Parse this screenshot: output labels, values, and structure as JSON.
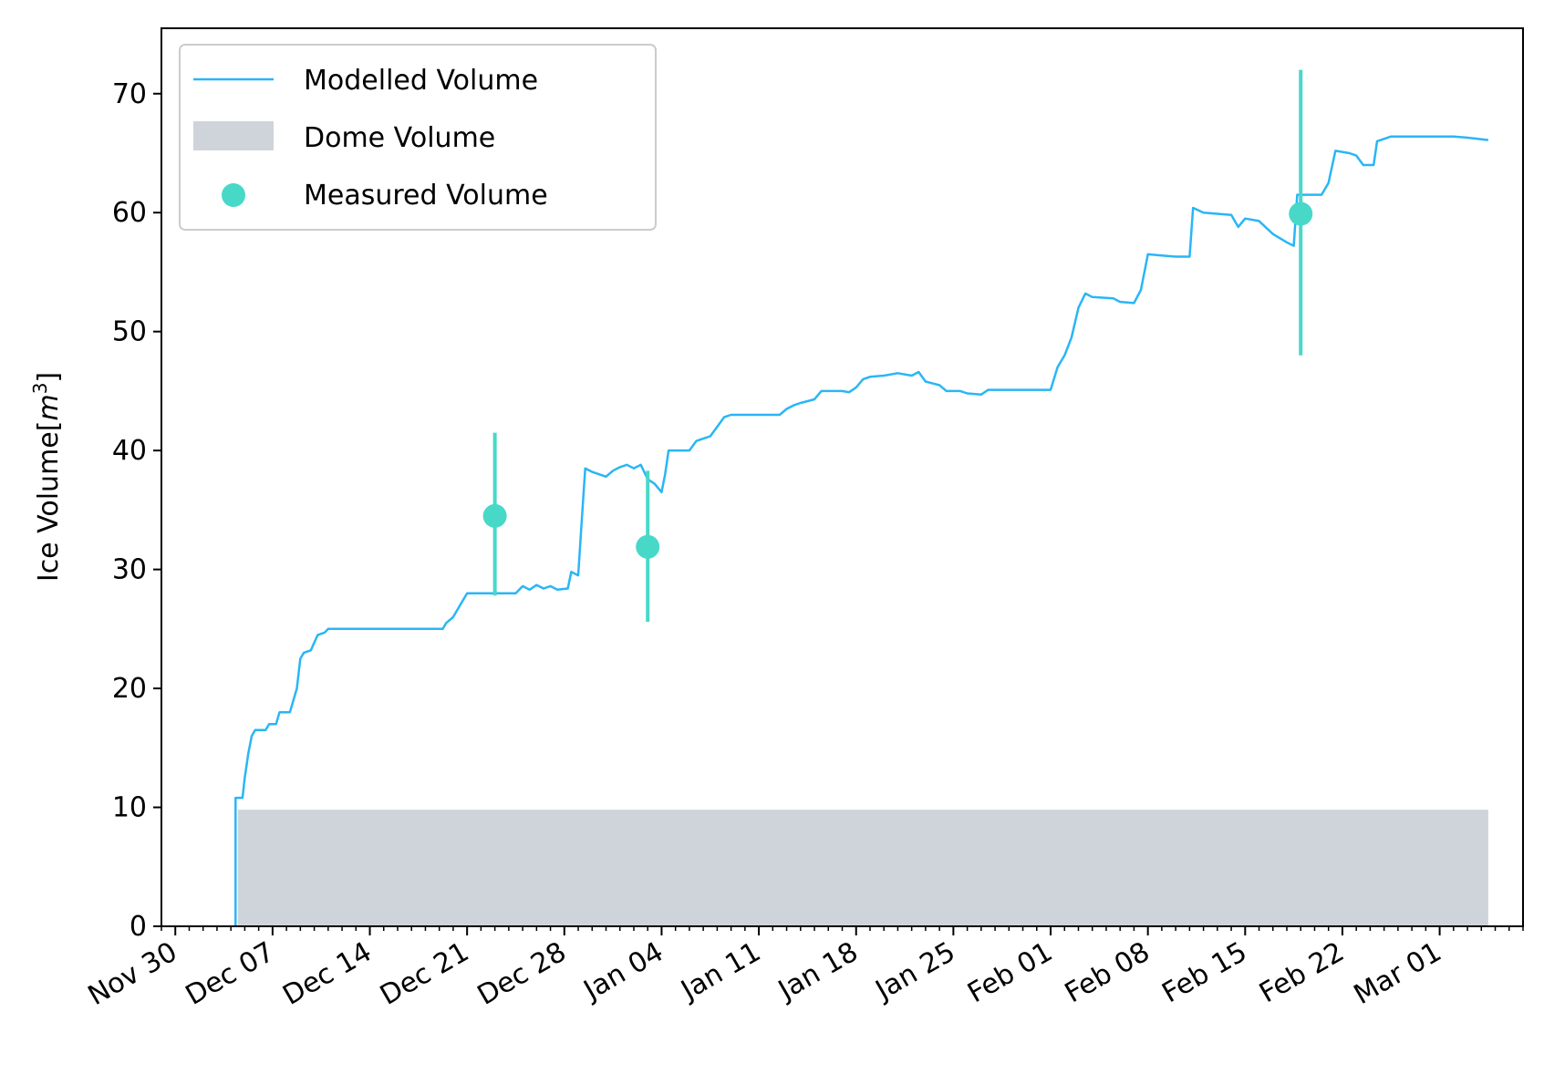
{
  "chart_data": {
    "type": "line",
    "ylabel": "Ice Volume[",
    "ylabel_math": "m",
    "ylabel_sup": "3",
    "ylabel_close": "]",
    "ylim": [
      0,
      75.5
    ],
    "yticks": [
      0,
      10,
      20,
      30,
      40,
      50,
      60,
      70
    ],
    "xlim": [
      "2020-11-29",
      "2021-03-07"
    ],
    "xticks": [
      {
        "date": "2020-11-30",
        "label": "Nov 30"
      },
      {
        "date": "2020-12-07",
        "label": "Dec 07"
      },
      {
        "date": "2020-12-14",
        "label": "Dec 14"
      },
      {
        "date": "2020-12-21",
        "label": "Dec 21"
      },
      {
        "date": "2020-12-28",
        "label": "Dec 28"
      },
      {
        "date": "2021-01-04",
        "label": "Jan 04"
      },
      {
        "date": "2021-01-11",
        "label": "Jan 11"
      },
      {
        "date": "2021-01-18",
        "label": "Jan 18"
      },
      {
        "date": "2021-01-25",
        "label": "Jan 25"
      },
      {
        "date": "2021-02-01",
        "label": "Feb 01"
      },
      {
        "date": "2021-02-08",
        "label": "Feb 08"
      },
      {
        "date": "2021-02-15",
        "label": "Feb 15"
      },
      {
        "date": "2021-02-22",
        "label": "Feb 22"
      },
      {
        "date": "2021-03-01",
        "label": "Mar 01"
      }
    ],
    "legend": {
      "placement": "top-left",
      "entries": [
        "Modelled Volume",
        "Dome Volume",
        "Measured Volume"
      ]
    },
    "colors": {
      "modelled": "#29b6f6",
      "dome": "#cfd4db",
      "measured": "#48d8c8"
    },
    "grid": false,
    "dome": {
      "name": "Dome Volume",
      "start": "2020-12-04 12:00",
      "end": "2021-03-04 12:00",
      "value": 9.8
    },
    "modelled": {
      "name": "Modelled Volume",
      "points": [
        [
          "2020-12-04 08:00",
          0
        ],
        [
          "2020-12-04 08:00",
          10.8
        ],
        [
          "2020-12-04 20:00",
          10.8
        ],
        [
          "2020-12-05 00:00",
          12.5
        ],
        [
          "2020-12-05 06:00",
          14.5
        ],
        [
          "2020-12-05 12:00",
          16.0
        ],
        [
          "2020-12-05 18:00",
          16.5
        ],
        [
          "2020-12-06 12:00",
          16.5
        ],
        [
          "2020-12-06 18:00",
          17.0
        ],
        [
          "2020-12-07 06:00",
          17.0
        ],
        [
          "2020-12-07 12:00",
          18.0
        ],
        [
          "2020-12-08 06:00",
          18.0
        ],
        [
          "2020-12-08 18:00",
          20.0
        ],
        [
          "2020-12-09 00:00",
          22.5
        ],
        [
          "2020-12-09 06:00",
          23.0
        ],
        [
          "2020-12-09 18:00",
          23.2
        ],
        [
          "2020-12-10 06:00",
          24.5
        ],
        [
          "2020-12-10 18:00",
          24.7
        ],
        [
          "2020-12-11 00:00",
          25.0
        ],
        [
          "2020-12-19 06:00",
          25.0
        ],
        [
          "2020-12-19 12:00",
          25.5
        ],
        [
          "2020-12-20 00:00",
          26.0
        ],
        [
          "2020-12-20 12:00",
          27.0
        ],
        [
          "2020-12-21 00:00",
          28.0
        ],
        [
          "2020-12-24 12:00",
          28.0
        ],
        [
          "2020-12-25 00:00",
          28.6
        ],
        [
          "2020-12-25 12:00",
          28.3
        ],
        [
          "2020-12-26 00:00",
          28.7
        ],
        [
          "2020-12-26 12:00",
          28.4
        ],
        [
          "2020-12-27 00:00",
          28.6
        ],
        [
          "2020-12-27 12:00",
          28.3
        ],
        [
          "2020-12-28 06:00",
          28.4
        ],
        [
          "2020-12-28 12:00",
          29.8
        ],
        [
          "2020-12-29 00:00",
          29.5
        ],
        [
          "2020-12-29 06:00",
          34.0
        ],
        [
          "2020-12-29 12:00",
          38.5
        ],
        [
          "2020-12-30 00:00",
          38.2
        ],
        [
          "2020-12-30 12:00",
          38.0
        ],
        [
          "2020-12-31 00:00",
          37.8
        ],
        [
          "2020-12-31 12:00",
          38.3
        ],
        [
          "2021-01-01 00:00",
          38.6
        ],
        [
          "2021-01-01 12:00",
          38.8
        ],
        [
          "2021-01-02 00:00",
          38.5
        ],
        [
          "2021-01-02 12:00",
          38.8
        ],
        [
          "2021-01-03 00:00",
          37.6
        ],
        [
          "2021-01-03 12:00",
          37.2
        ],
        [
          "2021-01-04 00:00",
          36.5
        ],
        [
          "2021-01-04 06:00",
          38.0
        ],
        [
          "2021-01-04 12:00",
          40.0
        ],
        [
          "2021-01-06 00:00",
          40.0
        ],
        [
          "2021-01-06 12:00",
          40.8
        ],
        [
          "2021-01-07 00:00",
          41.0
        ],
        [
          "2021-01-07 12:00",
          41.2
        ],
        [
          "2021-01-08 00:00",
          42.0
        ],
        [
          "2021-01-08 12:00",
          42.8
        ],
        [
          "2021-01-09 00:00",
          43.0
        ],
        [
          "2021-01-12 12:00",
          43.0
        ],
        [
          "2021-01-13 00:00",
          43.5
        ],
        [
          "2021-01-13 12:00",
          43.8
        ],
        [
          "2021-01-14 00:00",
          44.0
        ],
        [
          "2021-01-15 00:00",
          44.3
        ],
        [
          "2021-01-15 12:00",
          45.0
        ],
        [
          "2021-01-17 00:00",
          45.0
        ],
        [
          "2021-01-17 12:00",
          44.9
        ],
        [
          "2021-01-18 00:00",
          45.3
        ],
        [
          "2021-01-18 12:00",
          46.0
        ],
        [
          "2021-01-19 00:00",
          46.2
        ],
        [
          "2021-01-20 00:00",
          46.3
        ],
        [
          "2021-01-21 00:00",
          46.5
        ],
        [
          "2021-01-22 00:00",
          46.3
        ],
        [
          "2021-01-22 12:00",
          46.6
        ],
        [
          "2021-01-23 00:00",
          45.8
        ],
        [
          "2021-01-24 00:00",
          45.5
        ],
        [
          "2021-01-24 12:00",
          45.0
        ],
        [
          "2021-01-25 12:00",
          45.0
        ],
        [
          "2021-01-26 00:00",
          44.8
        ],
        [
          "2021-01-27 00:00",
          44.7
        ],
        [
          "2021-01-27 12:00",
          45.1
        ],
        [
          "2021-02-01 00:00",
          45.1
        ],
        [
          "2021-02-01 12:00",
          47.0
        ],
        [
          "2021-02-02 00:00",
          48.0
        ],
        [
          "2021-02-02 12:00",
          49.5
        ],
        [
          "2021-02-03 00:00",
          52.0
        ],
        [
          "2021-02-03 12:00",
          53.2
        ],
        [
          "2021-02-04 00:00",
          52.9
        ],
        [
          "2021-02-05 12:00",
          52.8
        ],
        [
          "2021-02-06 00:00",
          52.5
        ],
        [
          "2021-02-07 00:00",
          52.4
        ],
        [
          "2021-02-07 12:00",
          53.5
        ],
        [
          "2021-02-08 00:00",
          56.5
        ],
        [
          "2021-02-09 00:00",
          56.4
        ],
        [
          "2021-02-10 00:00",
          56.3
        ],
        [
          "2021-02-11 00:00",
          56.3
        ],
        [
          "2021-02-11 06:00",
          60.4
        ],
        [
          "2021-02-12 00:00",
          60.0
        ],
        [
          "2021-02-14 00:00",
          59.8
        ],
        [
          "2021-02-14 12:00",
          58.8
        ],
        [
          "2021-02-15 00:00",
          59.5
        ],
        [
          "2021-02-16 00:00",
          59.3
        ],
        [
          "2021-02-17 00:00",
          58.2
        ],
        [
          "2021-02-18 00:00",
          57.5
        ],
        [
          "2021-02-18 12:00",
          57.2
        ],
        [
          "2021-02-18 18:00",
          61.5
        ],
        [
          "2021-02-19 12:00",
          61.5
        ],
        [
          "2021-02-20 12:00",
          61.5
        ],
        [
          "2021-02-21 00:00",
          62.5
        ],
        [
          "2021-02-21 12:00",
          65.2
        ],
        [
          "2021-02-22 12:00",
          65.0
        ],
        [
          "2021-02-23 00:00",
          64.8
        ],
        [
          "2021-02-23 12:00",
          64.0
        ],
        [
          "2021-02-24 06:00",
          64.0
        ],
        [
          "2021-02-24 12:00",
          66.0
        ],
        [
          "2021-02-25 00:00",
          66.2
        ],
        [
          "2021-02-25 12:00",
          66.4
        ],
        [
          "2021-03-02 00:00",
          66.4
        ],
        [
          "2021-03-03 00:00",
          66.3
        ],
        [
          "2021-03-04 12:00",
          66.1
        ]
      ]
    },
    "measured": {
      "name": "Measured Volume",
      "points": [
        {
          "date": "2020-12-23 00:00",
          "y": 34.5,
          "ylow": 27.8,
          "yhigh": 41.5
        },
        {
          "date": "2021-01-03 00:00",
          "y": 31.9,
          "ylow": 25.6,
          "yhigh": 38.3
        },
        {
          "date": "2021-02-19 00:00",
          "y": 59.9,
          "ylow": 48.0,
          "yhigh": 72.0
        }
      ]
    }
  }
}
